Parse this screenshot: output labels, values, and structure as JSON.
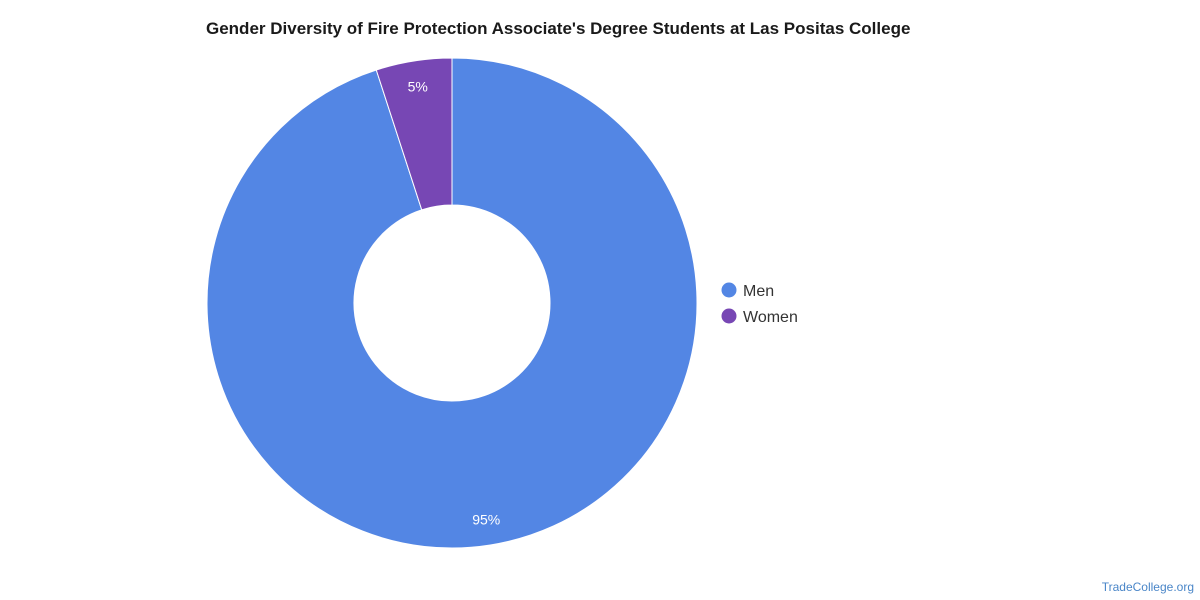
{
  "chart_data": {
    "type": "pie",
    "title": "Gender Diversity of Fire Protection Associate's Degree Students at Las Positas College",
    "categories": [
      "Men",
      "Women"
    ],
    "values": [
      95,
      5
    ],
    "data_labels": [
      "95%",
      "5%"
    ],
    "colors": [
      "#5386e4",
      "#7747b4"
    ],
    "donut": true,
    "legend_position": "right"
  },
  "credit": "TradeCollege.org"
}
